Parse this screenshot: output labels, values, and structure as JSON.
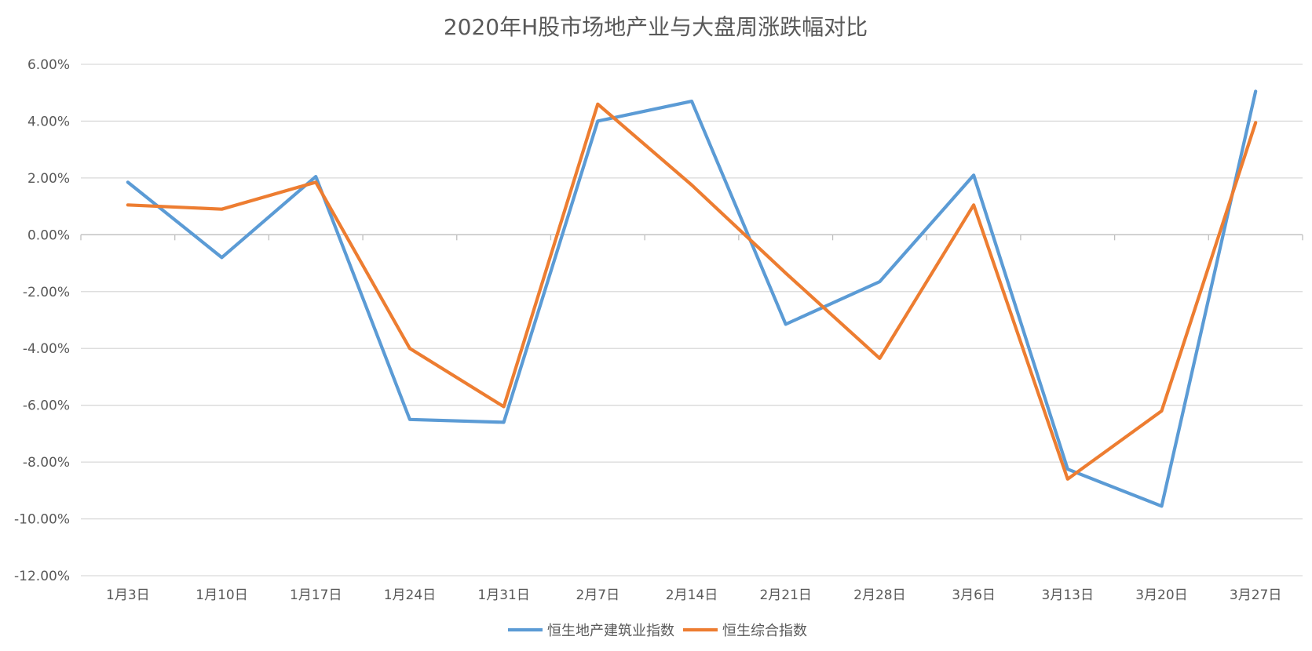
{
  "chart_data": {
    "type": "line",
    "title": "2020年H股市场地产业与大盘周涨跌幅对比",
    "categories": [
      "1月3日",
      "1月10日",
      "1月17日",
      "1月24日",
      "1月31日",
      "2月7日",
      "2月14日",
      "2月21日",
      "2月28日",
      "3月6日",
      "3月13日",
      "3月20日",
      "3月27日"
    ],
    "series": [
      {
        "name": "恒生地产建筑业指数",
        "color": "#5B9BD5",
        "values": [
          1.85,
          -0.8,
          2.05,
          -6.5,
          -6.6,
          4.0,
          4.7,
          -3.15,
          -1.65,
          2.1,
          -8.25,
          -9.55,
          5.05
        ]
      },
      {
        "name": "恒生综合指数",
        "color": "#ED7D31",
        "values": [
          1.05,
          0.9,
          1.85,
          -4.0,
          -6.05,
          4.6,
          1.75,
          -1.35,
          -4.35,
          1.05,
          -8.6,
          -6.2,
          3.95
        ]
      }
    ],
    "ylim": [
      -12,
      6
    ],
    "yticks": [
      "-12.00%",
      "-10.00%",
      "-8.00%",
      "-6.00%",
      "-4.00%",
      "-2.00%",
      "0.00%",
      "2.00%",
      "4.00%",
      "6.00%"
    ],
    "grid": true,
    "legend": "bottom"
  }
}
